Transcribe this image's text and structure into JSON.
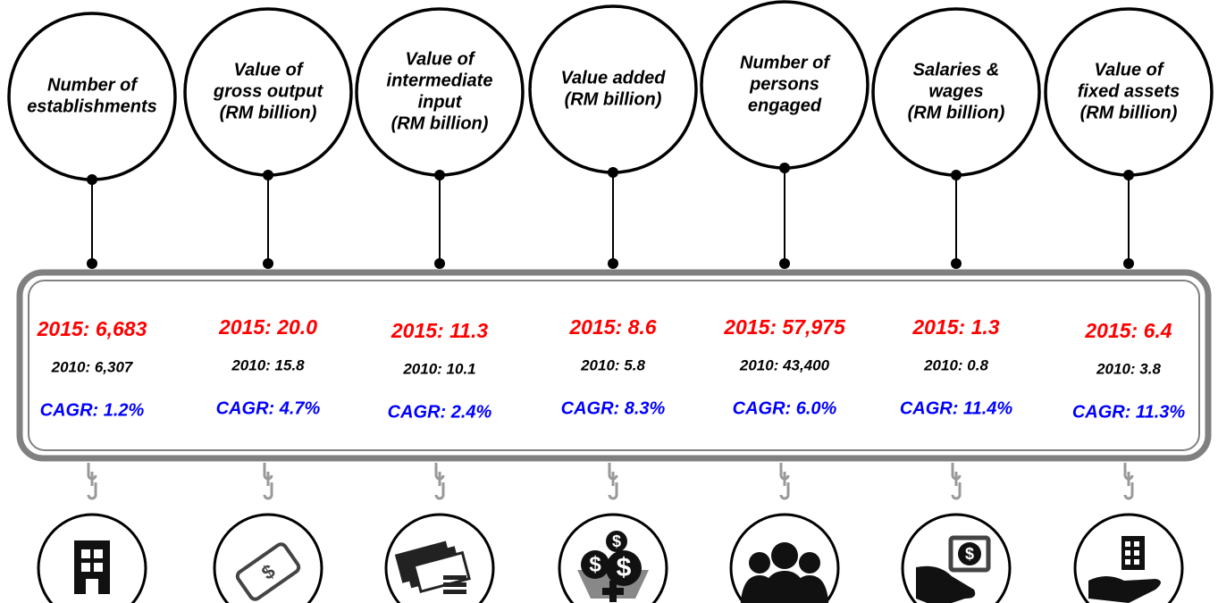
{
  "items": [
    {
      "label": [
        "Number of",
        "establishments"
      ],
      "y2015": "2015: 6,683",
      "y2010": "2010: 6,307",
      "cagr": "CAGR: 1.2%"
    },
    {
      "label": [
        "Value of",
        "gross output",
        "(RM billion)"
      ],
      "y2015": "2015: 20.0",
      "y2010": "2010: 15.8",
      "cagr": "CAGR: 4.7%"
    },
    {
      "label": [
        "Value of",
        "intermediate",
        "input",
        "(RM billion)"
      ],
      "y2015": "2015: 11.3",
      "y2010": "2010: 10.1",
      "cagr": "CAGR: 2.4%"
    },
    {
      "label": [
        "Value added",
        "(RM billion)"
      ],
      "y2015": "2015: 8.6",
      "y2010": "2010: 5.8",
      "cagr": "CAGR: 8.3%"
    },
    {
      "label": [
        "Number of",
        "persons",
        "engaged"
      ],
      "y2015": "2015: 57,975",
      "y2010": "2010: 43,400",
      "cagr": "CAGR: 6.0%"
    },
    {
      "label": [
        "Salaries &",
        "wages",
        "(RM billion)"
      ],
      "y2015": "2015: 1.3",
      "y2010": "2010: 0.8",
      "cagr": "CAGR: 11.4%"
    },
    {
      "label": [
        "Value of",
        "fixed assets",
        "(RM billion)"
      ],
      "y2015": "2015: 6.4",
      "y2010": "2010: 3.8",
      "cagr": "CAGR: 11.3%"
    }
  ]
}
